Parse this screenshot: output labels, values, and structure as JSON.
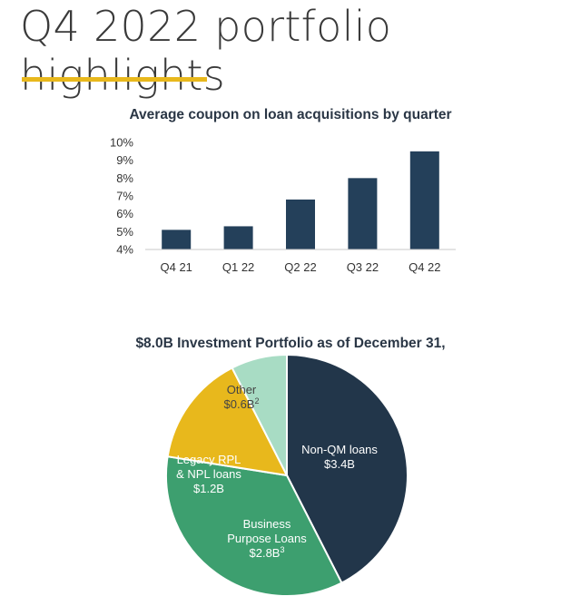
{
  "page": {
    "title": "Q4 2022 portfolio highlights",
    "accent_color": "#e8b81c"
  },
  "chart_data": [
    {
      "type": "bar",
      "title": "Average coupon on loan acquisitions by quarter",
      "categories": [
        "Q4 21",
        "Q1 22",
        "Q2 22",
        "Q3 22",
        "Q4 22"
      ],
      "values": [
        5.1,
        5.3,
        6.8,
        8.0,
        9.5
      ],
      "unit": "%",
      "ylim": [
        4,
        10
      ],
      "yticks": [
        "4%",
        "5%",
        "6%",
        "7%",
        "8%",
        "9%",
        "10%"
      ],
      "grid": false,
      "bar_color": "#24405a"
    },
    {
      "type": "pie",
      "title": "$8.0B Investment Portfolio as of December 31,",
      "slices": [
        {
          "label": "Non-QM loans",
          "value_text": "$3.4B",
          "sup": "",
          "value": 3.4,
          "color": "#22364a",
          "text_color": "#ffffff"
        },
        {
          "label": "Business Purpose Loans",
          "label_lines": [
            "Business",
            "Purpose Loans"
          ],
          "value_text": "$2.8B",
          "sup": "3",
          "value": 2.8,
          "color": "#3d9f6f",
          "text_color": "#ffffff"
        },
        {
          "label": "Legacy RPL & NPL loans",
          "label_lines": [
            "Legacy RPL",
            "& NPL loans"
          ],
          "value_text": "$1.2B",
          "sup": "",
          "value": 1.2,
          "color": "#e8b81c",
          "text_color": "#ffffff"
        },
        {
          "label": "Other",
          "value_text": "$0.6B",
          "sup": "2",
          "value": 0.6,
          "color": "#a8dcc4",
          "text_color": "#444444"
        }
      ]
    }
  ]
}
